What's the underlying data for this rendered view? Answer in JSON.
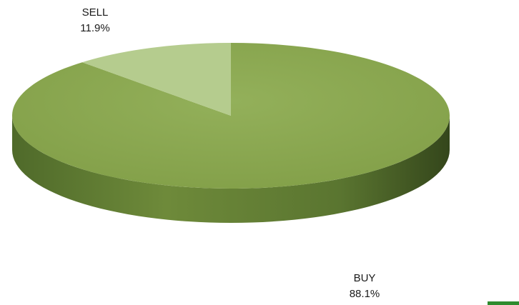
{
  "chart_data": {
    "type": "pie",
    "style": "3d",
    "legend": "none",
    "categories": [
      "BUY",
      "SELL"
    ],
    "values": [
      88.1,
      11.9
    ],
    "labels": [
      {
        "name": "BUY",
        "value_text": "88.1%"
      },
      {
        "name": "SELL",
        "value_text": "11.9%"
      }
    ],
    "colors": {
      "BUY_top": "#8ba84f",
      "BUY_side_light": "#6e8a3a",
      "BUY_side_dark": "#3f5320",
      "SELL_top": "#b5cc8e",
      "accent_bar": "#2e8b2e"
    }
  }
}
